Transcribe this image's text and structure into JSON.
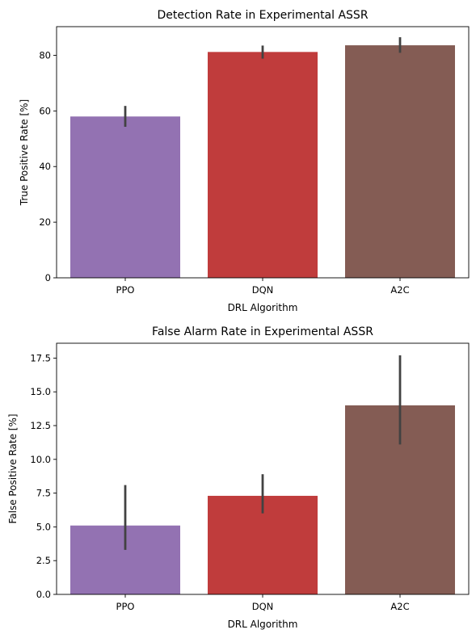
{
  "chart_data": [
    {
      "type": "bar",
      "title": "Detection Rate in Experimental ASSR",
      "xlabel": "DRL Algorithm",
      "ylabel": "True Positive Rate [%]",
      "categories": [
        "PPO",
        "DQN",
        "A2C"
      ],
      "values": [
        58.0,
        81.2,
        83.6
      ],
      "error_low": [
        54.3,
        78.8,
        80.9
      ],
      "error_high": [
        61.8,
        83.5,
        86.5
      ],
      "colors": [
        "#9372b2",
        "#c03c3c",
        "#845c54"
      ],
      "ylim": [
        0,
        90.3
      ],
      "yticks": [
        0,
        20,
        40,
        60,
        80
      ],
      "ytick_labels": [
        "0",
        "20",
        "40",
        "60",
        "80"
      ],
      "grid": false
    },
    {
      "type": "bar",
      "title": "False Alarm Rate in Experimental ASSR",
      "xlabel": "DRL Algorithm",
      "ylabel": "False Positive Rate [%]",
      "categories": [
        "PPO",
        "DQN",
        "A2C"
      ],
      "values": [
        5.1,
        7.3,
        14.0
      ],
      "error_low": [
        3.3,
        6.0,
        11.1
      ],
      "error_high": [
        8.1,
        8.9,
        17.7
      ],
      "colors": [
        "#9372b2",
        "#c03c3c",
        "#845c54"
      ],
      "ylim": [
        0,
        18.6
      ],
      "yticks": [
        0,
        2.5,
        5,
        7.5,
        10,
        12.5,
        15,
        17.5
      ],
      "ytick_labels": [
        "0.0",
        "2.5",
        "5.0",
        "7.5",
        "10.0",
        "12.5",
        "15.0",
        "17.5"
      ],
      "grid": false
    }
  ]
}
